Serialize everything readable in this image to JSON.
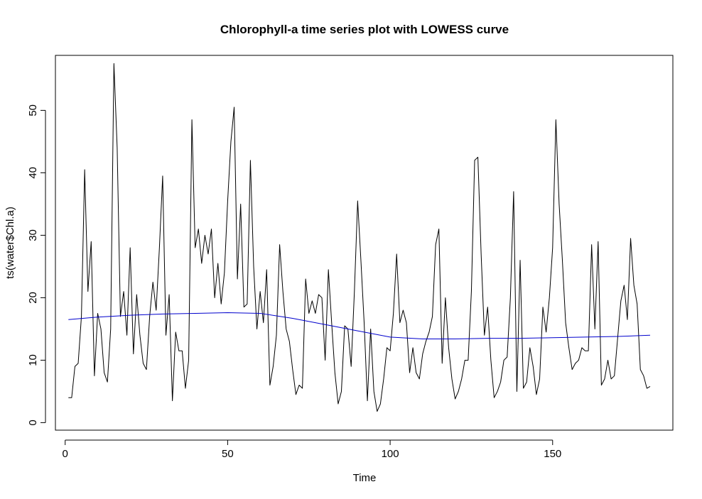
{
  "chart_data": {
    "type": "line",
    "title": "Chlorophyll-a time series plot with LOWESS curve",
    "xlabel": "Time",
    "ylabel": "ts(water$Chl.a)",
    "xlim": [
      -3,
      187
    ],
    "ylim": [
      -1.2,
      58.8
    ],
    "x_ticks": [
      0,
      50,
      100,
      150
    ],
    "y_ticks": [
      0,
      10,
      20,
      30,
      40,
      50
    ],
    "grid": false,
    "legend": "none",
    "series": [
      {
        "color": "#000000",
        "x_start": 1,
        "values": [
          4,
          4,
          9,
          9.5,
          17,
          40.5,
          21,
          29,
          7.5,
          17.5,
          15,
          8,
          6.5,
          15,
          57.5,
          44,
          17,
          21,
          14,
          28,
          11,
          20.5,
          14,
          9.5,
          8.5,
          17,
          22.5,
          18,
          28,
          39.5,
          14,
          20.5,
          3.5,
          14.5,
          11.5,
          11.5,
          5.5,
          10,
          48.5,
          28,
          31,
          25.5,
          30,
          27,
          31,
          20,
          25.5,
          19,
          24,
          35.5,
          45,
          50.5,
          23,
          35,
          18.5,
          19,
          42,
          25,
          15,
          21,
          16,
          24.5,
          6,
          9,
          14,
          28.5,
          21,
          15,
          13,
          8.5,
          4.5,
          6,
          5.5,
          23,
          17.5,
          19.5,
          17.5,
          20.5,
          20,
          10,
          24.5,
          16,
          8,
          3,
          5,
          15.5,
          15,
          9,
          21,
          35.5,
          26,
          16,
          3.5,
          15,
          5,
          1.8,
          3,
          7,
          12,
          11.5,
          17.5,
          27,
          16,
          18,
          16,
          8,
          12,
          8,
          7,
          11,
          13,
          14.5,
          17,
          28.5,
          31,
          9.5,
          20,
          12,
          7,
          3.8,
          5,
          7,
          10,
          10,
          21,
          42,
          42.5,
          27,
          14,
          18.5,
          10,
          4,
          5,
          6.5,
          10,
          10.5,
          20,
          37,
          5,
          26,
          5.5,
          6.5,
          12,
          9,
          4.5,
          7,
          18.5,
          14.5,
          20,
          28,
          48.5,
          35,
          26,
          16,
          12,
          8.5,
          9.5,
          10,
          12,
          11.5,
          11.5,
          28.5,
          15,
          29,
          6,
          7,
          10,
          7,
          7.5,
          13.5,
          19.5,
          22,
          16.5,
          29.5,
          22,
          19,
          8.5,
          7.5,
          5.5,
          5.8
        ]
      },
      {
        "color": "#0000cd",
        "x": [
          1,
          10,
          20,
          30,
          40,
          50,
          60,
          70,
          80,
          90,
          100,
          110,
          120,
          130,
          140,
          150,
          160,
          170,
          180
        ],
        "values": [
          16.5,
          16.9,
          17.2,
          17.4,
          17.5,
          17.6,
          17.5,
          16.7,
          15.7,
          14.7,
          13.7,
          13.4,
          13.4,
          13.5,
          13.5,
          13.6,
          13.7,
          13.8,
          14.0
        ]
      }
    ]
  }
}
